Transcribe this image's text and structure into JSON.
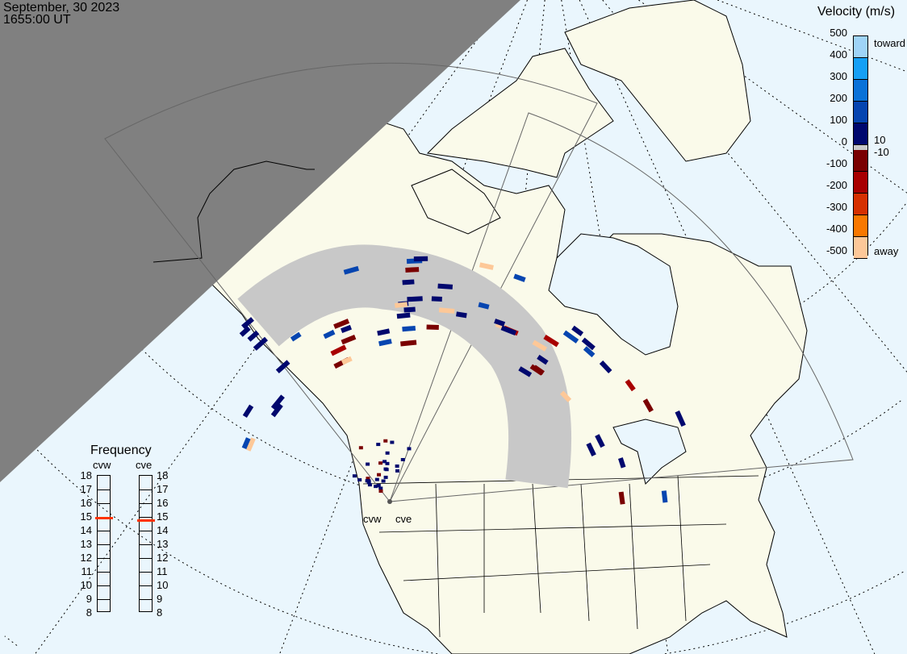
{
  "header": {
    "date": "September, 30 2023",
    "time": "1655:00 UT"
  },
  "colors": {
    "ocean": "#eaf6fd",
    "land": "#fafaea",
    "night": "#808080",
    "ground_scatter": "#c8c8c8",
    "frequency_marker": "#ff3300"
  },
  "radars": [
    {
      "code": "cvw",
      "frequency_mhz": 14.9
    },
    {
      "code": "cve",
      "frequency_mhz": 14.7
    }
  ],
  "velocity_scale": {
    "title": "Velocity (m/s)",
    "ticks": [
      "500",
      "400",
      "300",
      "200",
      "100",
      "0",
      "-100",
      "-200",
      "-300",
      "-400",
      "-500"
    ],
    "toward_label": "toward",
    "away_label": "away",
    "threshold_labels": [
      "10",
      "-10"
    ],
    "colors": [
      "#9fd4f7",
      "#16a0f5",
      "#0a72d8",
      "#0645b0",
      "#00086e",
      "#7a0000",
      "#a80000",
      "#d63000",
      "#f97800",
      "#fdc898"
    ]
  },
  "frequency_panel": {
    "title": "Frequency",
    "ticks": [
      "18",
      "17",
      "16",
      "15",
      "14",
      "13",
      "12",
      "11",
      "10",
      "9",
      "8"
    ],
    "range_mhz": [
      8,
      18
    ]
  }
}
